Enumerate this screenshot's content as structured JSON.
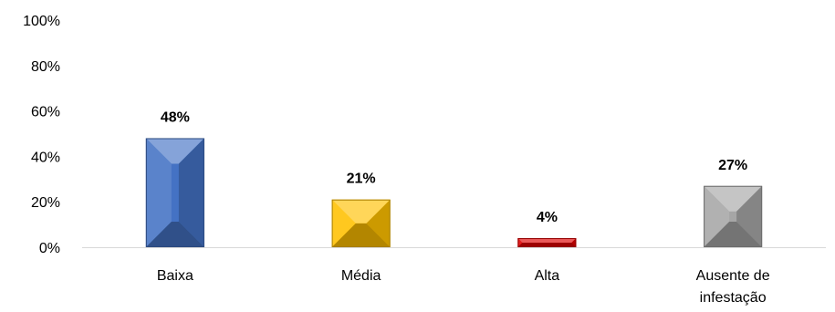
{
  "chart_data": {
    "type": "bar",
    "categories": [
      [
        "Baixa"
      ],
      [
        "Média"
      ],
      [
        "Alta"
      ],
      [
        "Ausente de",
        "infestação"
      ]
    ],
    "values": [
      48,
      21,
      4,
      27
    ],
    "data_labels": [
      "48%",
      "21%",
      "4%",
      "27%"
    ],
    "bar_colors": [
      "#4472C4",
      "#FFC000",
      "#E00000",
      "#A6A6A6"
    ],
    "title": "",
    "xlabel": "",
    "ylabel": "",
    "ylim": [
      0,
      100
    ],
    "yticks": [
      0,
      20,
      40,
      60,
      80,
      100
    ],
    "ytick_labels": [
      "0%",
      "20%",
      "40%",
      "60%",
      "80%",
      "100%"
    ],
    "grid": false,
    "legend": "none",
    "bar_style": "beveled"
  }
}
